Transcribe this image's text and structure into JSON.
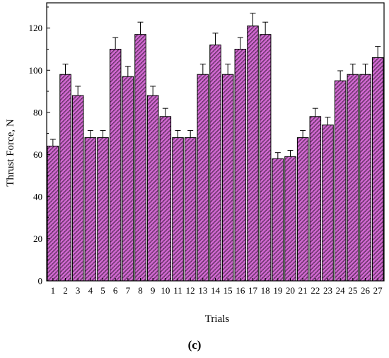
{
  "chart_data": {
    "type": "bar",
    "title": "",
    "xlabel": "Trials",
    "ylabel": "Thrust Force, N",
    "panel_label": "(c)",
    "categories": [
      "1",
      "2",
      "3",
      "4",
      "5",
      "6",
      "7",
      "8",
      "9",
      "10",
      "11",
      "12",
      "13",
      "14",
      "15",
      "16",
      "17",
      "18",
      "19",
      "20",
      "21",
      "22",
      "23",
      "24",
      "25",
      "26",
      "27"
    ],
    "values": [
      64,
      98,
      88,
      68,
      68,
      110,
      97,
      117,
      88,
      78,
      68,
      68,
      98,
      112,
      98,
      110,
      121,
      117,
      58,
      59,
      68,
      78,
      74,
      95,
      98,
      98,
      106
    ],
    "errors": [
      3.2,
      4.9,
      4.4,
      3.4,
      3.4,
      5.5,
      4.85,
      5.85,
      4.4,
      3.9,
      3.4,
      3.4,
      4.9,
      5.6,
      4.9,
      5.5,
      6.05,
      5.85,
      2.9,
      2.95,
      3.4,
      3.9,
      3.7,
      4.75,
      4.9,
      4.9,
      5.3
    ],
    "ylim": [
      0,
      132
    ],
    "yticks": [
      0,
      20,
      40,
      60,
      80,
      100,
      120
    ],
    "grid": false,
    "bar_fill": "#cc66cc",
    "bar_stroke": "#000000",
    "bar_hatch": "#000000"
  }
}
